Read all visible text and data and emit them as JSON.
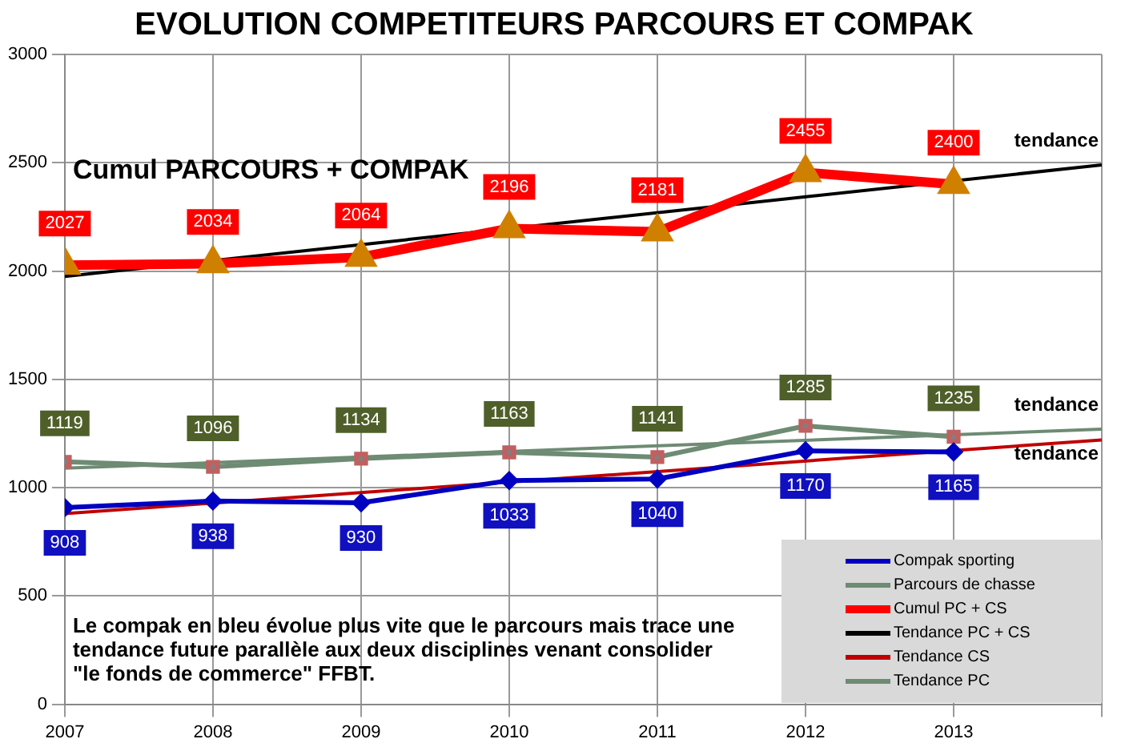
{
  "chart_data": {
    "type": "line",
    "title": "EVOLUTION COMPETITEURS PARCOURS ET COMPAK",
    "xlim": [
      2007,
      2014
    ],
    "xticks": [
      2007,
      2008,
      2009,
      2010,
      2011,
      2012,
      2013,
      {
        "value": 2014,
        "label": null
      }
    ],
    "ylim": [
      0,
      3000
    ],
    "yticks": [
      0,
      500,
      1000,
      1500,
      2000,
      2500,
      3000
    ],
    "grid": true,
    "legend": "bottom right",
    "series": [
      {
        "name": "Compak sporting",
        "color": "#0000c0",
        "marker": "diamond",
        "x": [
          2007,
          2008,
          2009,
          2010,
          2011,
          2012,
          2013
        ],
        "values": [
          908,
          938,
          930,
          1033,
          1040,
          1170,
          1165
        ],
        "value_labels": [
          "908",
          "938",
          "930",
          "1033",
          "1040",
          "1170",
          "1165"
        ]
      },
      {
        "name": "Parcours de chasse",
        "color": "#6e8b74",
        "marker": "square",
        "x": [
          2007,
          2008,
          2009,
          2010,
          2011,
          2012,
          2013
        ],
        "values": [
          1119,
          1096,
          1134,
          1163,
          1141,
          1285,
          1235
        ],
        "value_labels": [
          "1119",
          "1096",
          "1134",
          "1163",
          "1141",
          "1285",
          "1235"
        ]
      },
      {
        "name": "Cumul PC + CS",
        "color": "#ff0000",
        "marker": "triangle",
        "x": [
          2007,
          2008,
          2009,
          2010,
          2011,
          2012,
          2013
        ],
        "values": [
          2027,
          2034,
          2064,
          2196,
          2181,
          2455,
          2400
        ],
        "value_labels": [
          "2027",
          "2034",
          "2064",
          "2196",
          "2181",
          "2455",
          "2400"
        ]
      },
      {
        "name": "Tendance PC + CS",
        "color": "#000000",
        "marker": "none",
        "x": [
          2007,
          2014
        ],
        "values": [
          1975,
          2490
        ]
      },
      {
        "name": "Tendance CS",
        "color": "#c00000",
        "marker": "none",
        "x": [
          2007,
          2014
        ],
        "values": [
          880,
          1220
        ]
      },
      {
        "name": "Tendance PC",
        "color": "#6e8b74",
        "marker": "none",
        "x": [
          2007,
          2014
        ],
        "values": [
          1090,
          1270
        ]
      }
    ],
    "annotations": [
      "Cumul PARCOURS + COMPAK",
      "tendance",
      "tendance",
      "tendance",
      "Le compak en bleu évolue plus vite que le parcours mais trace une tendance future parallèle aux deux disciplines venant consolider \"le fonds de commerce\" FFBT."
    ]
  }
}
